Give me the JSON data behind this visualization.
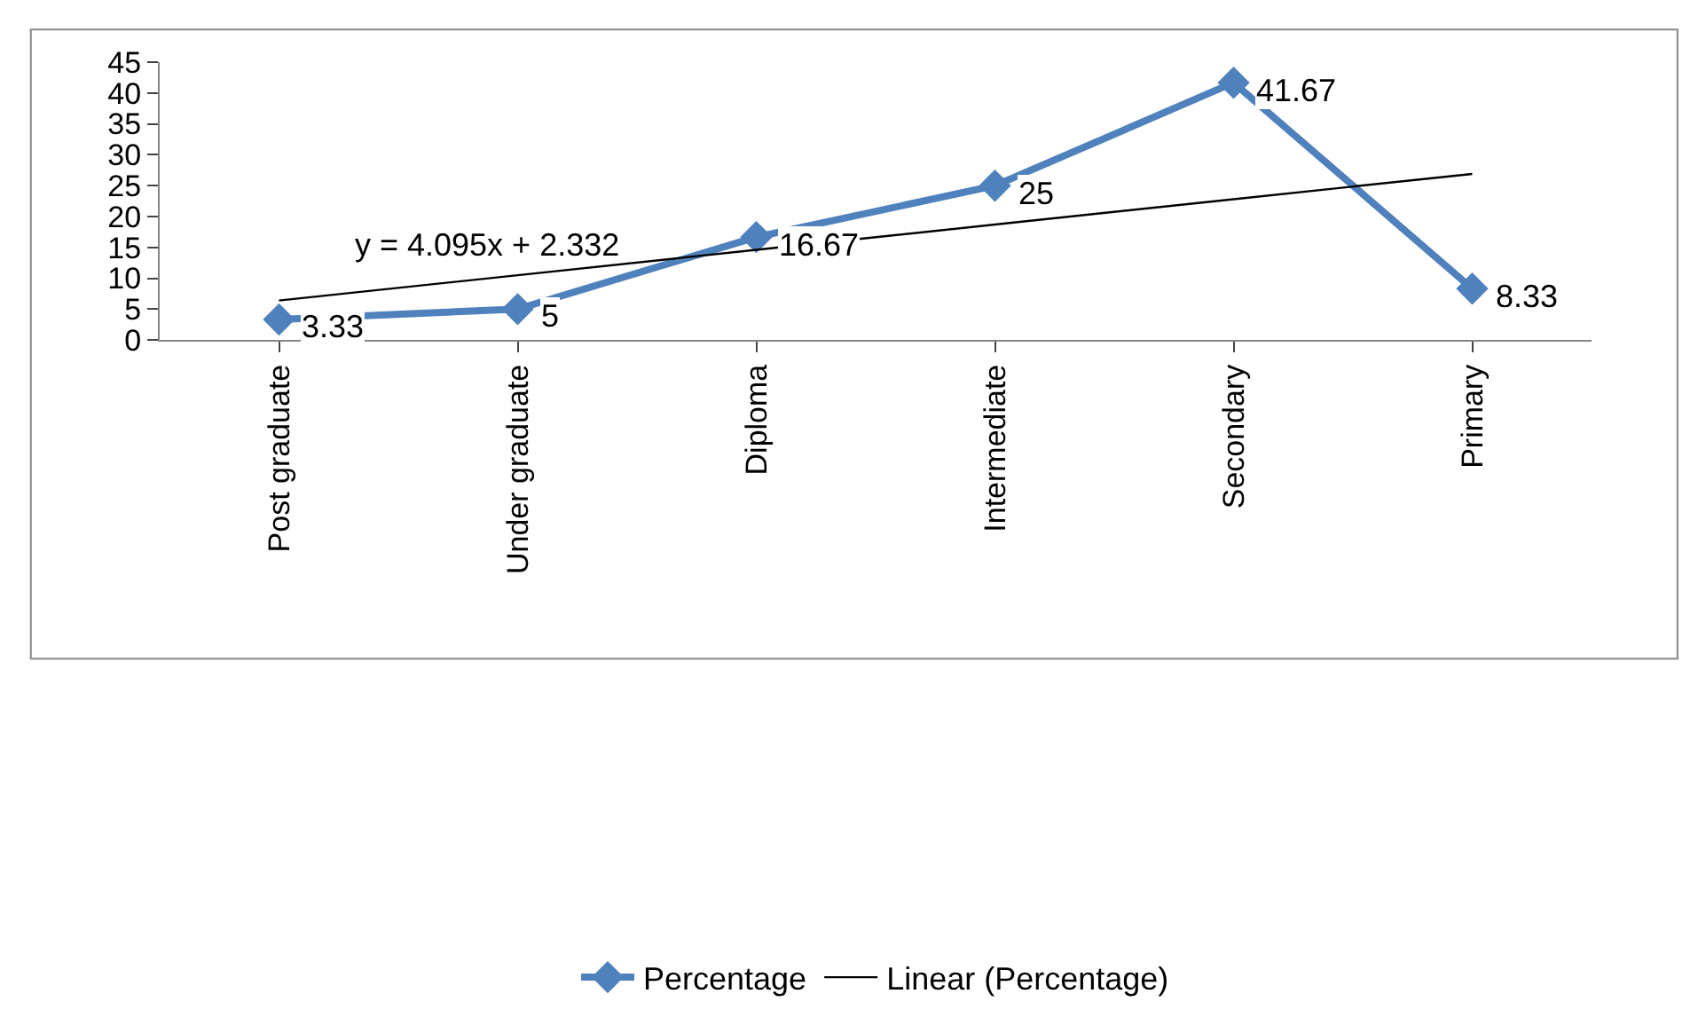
{
  "chart_data": {
    "type": "line",
    "categories": [
      "Post graduate",
      "Under graduate",
      "Diploma",
      "Intermediate",
      "Secondary",
      "Primary"
    ],
    "series": [
      {
        "name": "Percentage",
        "color": "#4f81bd",
        "values": [
          3.33,
          5,
          16.67,
          25,
          41.67,
          8.33
        ],
        "value_labels": [
          "3.33",
          "5",
          "16.67",
          "25",
          "41.67",
          "8.33"
        ],
        "marker": "diamond"
      },
      {
        "name": "Linear (Percentage)",
        "color": "#000000",
        "type": "line",
        "values": [
          6.4,
          10.5,
          14.6,
          18.7,
          22.8,
          26.9
        ],
        "marker": "none"
      }
    ],
    "annotations": [
      "y = 4.095x + 2.332"
    ],
    "ylim": [
      0,
      45
    ],
    "yticks": [
      0,
      5,
      10,
      15,
      20,
      25,
      30,
      35,
      40,
      45
    ],
    "legend": "bottom",
    "line_style": "solid"
  }
}
